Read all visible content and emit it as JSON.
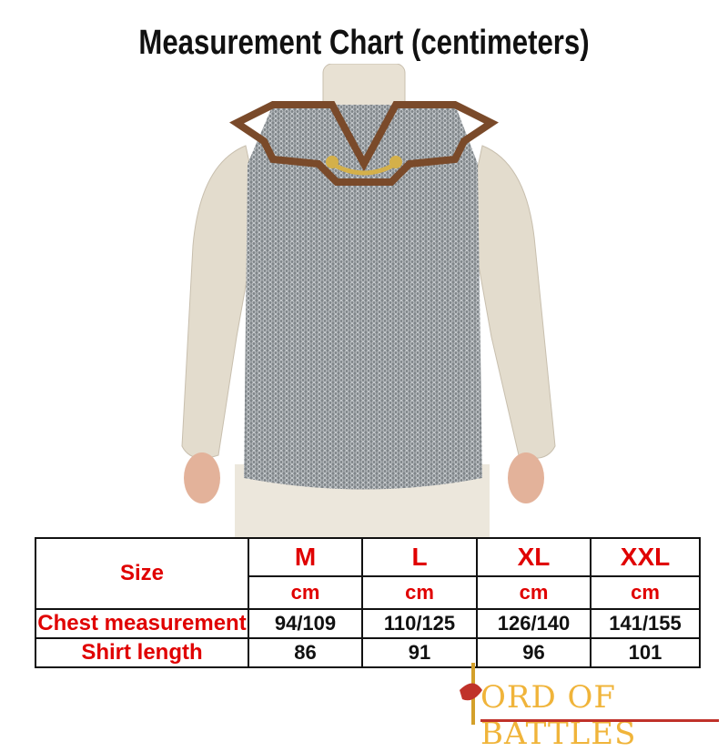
{
  "title": "Measurement Chart (centimeters)",
  "table": {
    "size_label": "Size",
    "sizes": [
      "M",
      "L",
      "XL",
      "XXL"
    ],
    "unit": "cm",
    "rows": [
      {
        "label": "Chest measurement",
        "values": [
          "94/109",
          "110/125",
          "126/140",
          "141/155"
        ]
      },
      {
        "label": "Shirt length",
        "values": [
          "86",
          "91",
          "96",
          "101"
        ]
      }
    ]
  },
  "logo": {
    "text": "ORD OF BATTLES",
    "full": "Lord of Battles"
  },
  "colors": {
    "label_red": "#e00000",
    "logo_gold": "#f0b43a",
    "mail_grey": "#8a8f93",
    "gambeson": "#e3dccd"
  }
}
